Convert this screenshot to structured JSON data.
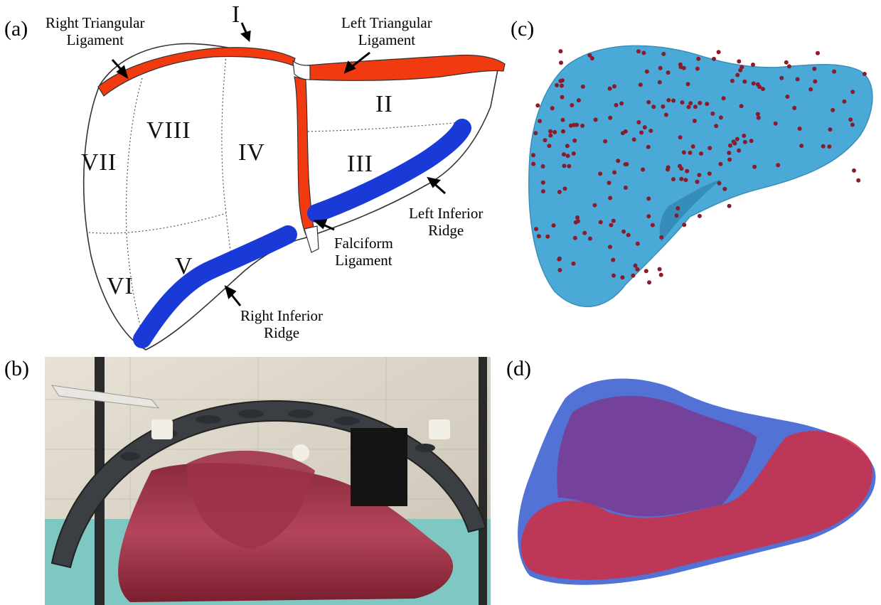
{
  "panels": {
    "a": {
      "label": "(a)",
      "segments": [
        "I",
        "II",
        "III",
        "IV",
        "V",
        "VI",
        "VII",
        "VIII"
      ],
      "annotations": {
        "right_triangular": [
          "Right Triangular",
          "Ligament"
        ],
        "left_triangular": [
          "Left Triangular",
          "Ligament"
        ],
        "left_inferior": [
          "Left Inferior",
          "Ridge"
        ],
        "falciform": [
          "Falciform",
          "Ligament"
        ],
        "right_inferior": [
          "Right Inferior",
          "Ridge"
        ]
      },
      "colors": {
        "ligament": "#f23a10",
        "ridge": "#1a3ad8",
        "outline": "#333333"
      }
    },
    "b": {
      "label": "(b)"
    },
    "c": {
      "label": "(c)",
      "colors": {
        "surface": "#4aa9d6",
        "points": "#8b1a2a"
      }
    },
    "d": {
      "label": "(d)",
      "colors": {
        "blue": "#3a5fd0",
        "red": "#d8283a",
        "overlap": "#7a3a90"
      }
    }
  }
}
